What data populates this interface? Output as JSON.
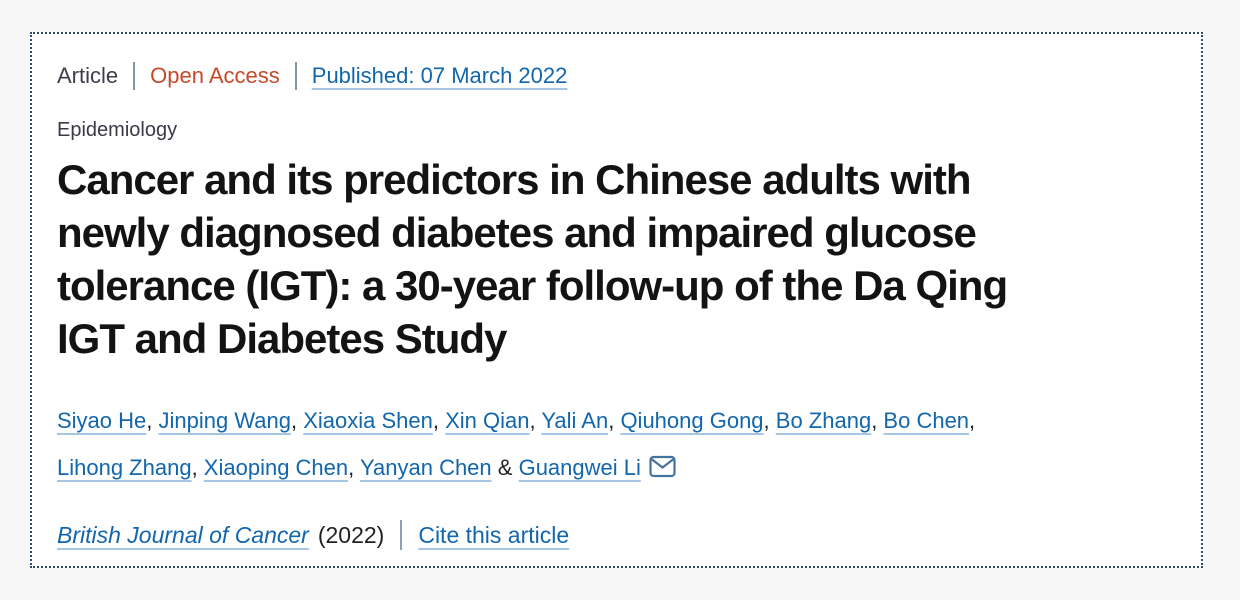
{
  "meta": {
    "article_label": "Article",
    "open_access_label": "Open Access",
    "published_link": "Published: 07 March 2022"
  },
  "category": "Epidemiology",
  "title": {
    "full": "Cancer and its predictors in Chinese adults with newly diagnosed diabetes and impaired glucose tolerance (IGT): a 30-year follow-up of the Da Qing IGT and Diabetes Study",
    "lines": [
      "Cancer and its predictors in Chinese adults with",
      "newly diagnosed diabetes and impaired glucose",
      "tolerance (IGT): a 30-year follow-up of the Da Qing",
      "IGT and Diabetes Study"
    ]
  },
  "authors": {
    "names": [
      "Siyao He",
      "Jinping Wang",
      "Xiaoxia Shen",
      "Xin Qian",
      "Yali An",
      "Qiuhong Gong",
      "Bo Zhang",
      "Bo Chen",
      "Lihong Zhang",
      "Xiaoping Chen",
      "Yanyan Chen",
      "Guangwei Li"
    ],
    "comma": ",",
    "ampersand": "&",
    "email_icon": "envelope-icon"
  },
  "footer": {
    "journal_link": "British Journal of Cancer",
    "year": "(2022)",
    "cite_link": "Cite this article"
  },
  "colors": {
    "link_blue": "#1266ae",
    "open_access_red": "#c64928",
    "border_blue": "#2c4a73",
    "envelope_blue": "#44749e",
    "title_black": "#131313"
  }
}
